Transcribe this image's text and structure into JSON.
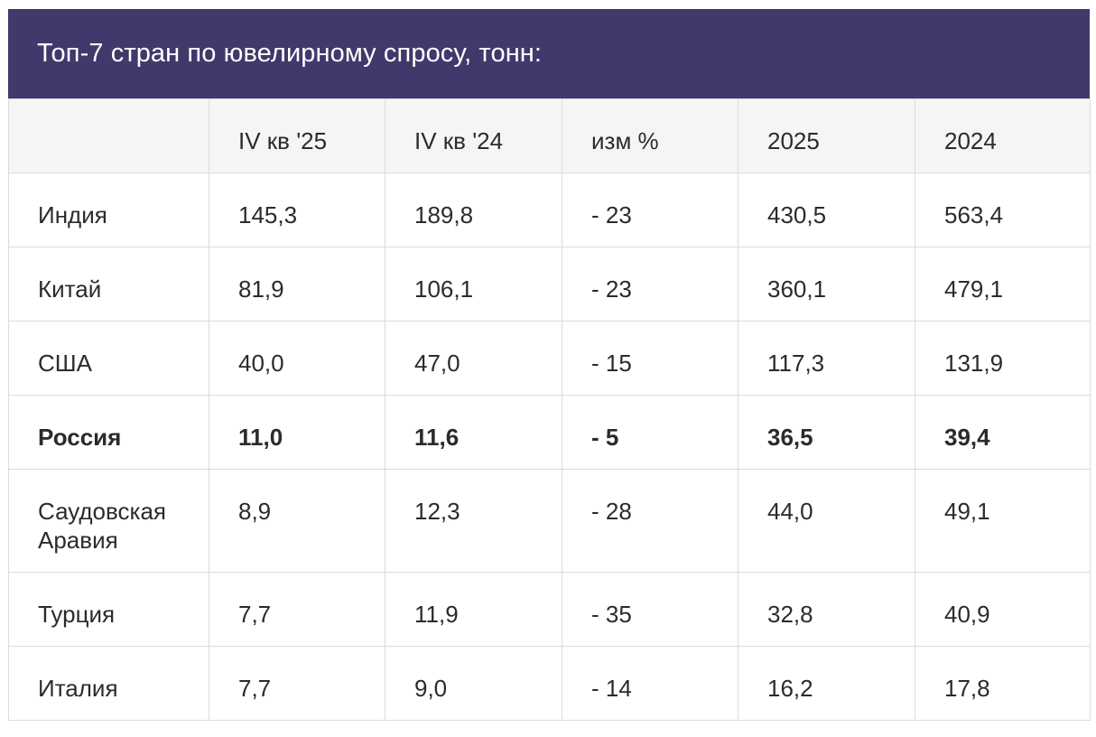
{
  "title": "Топ-7 стран по ювелирному спросу, тонн:",
  "columns": [
    "",
    "IV кв '25",
    "IV кв '24",
    "изм %",
    "2025",
    "2024"
  ],
  "rows": [
    {
      "country": "Индия",
      "q4_25": "145,3",
      "q4_24": "189,8",
      "chg": "- 23",
      "y2025": "430,5",
      "y2024": "563,4"
    },
    {
      "country": "Китай",
      "q4_25": "81,9",
      "q4_24": "106,1",
      "chg": "- 23",
      "y2025": "360,1",
      "y2024": "479,1"
    },
    {
      "country": "США",
      "q4_25": "40,0",
      "q4_24": "47,0",
      "chg": "- 15",
      "y2025": "117,3",
      "y2024": "131,9"
    },
    {
      "country": "Россия",
      "q4_25": "11,0",
      "q4_24": "11,6",
      "chg": "- 5",
      "y2025": "36,5",
      "y2024": "39,4"
    },
    {
      "country": "Саудовская Аравия",
      "q4_25": "8,9",
      "q4_24": "12,3",
      "chg": "- 28",
      "y2025": "44,0",
      "y2024": "49,1"
    },
    {
      "country": "Турция",
      "q4_25": "7,7",
      "q4_24": "11,9",
      "chg": "- 35",
      "y2025": "32,8",
      "y2024": "40,9"
    },
    {
      "country": "Италия",
      "q4_25": "7,7",
      "q4_24": "9,0",
      "chg": "- 14",
      "y2025": "16,2",
      "y2024": "17,8"
    }
  ],
  "colors": {
    "header_bg": "#42386b",
    "header_text": "#ffffff",
    "column_header_bg": "#f5f5f5",
    "grid": "#dcdcdc",
    "text": "#2b2b2b"
  }
}
